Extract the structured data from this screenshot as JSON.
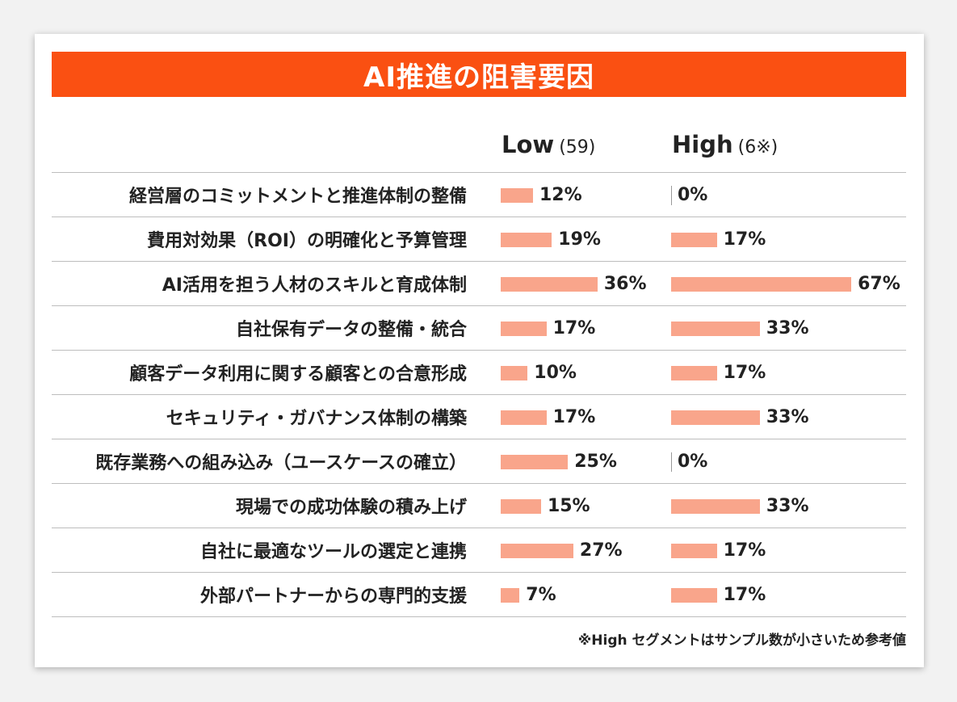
{
  "chart_data": {
    "type": "bar",
    "orientation": "horizontal",
    "title": "AI推進の阻害要因",
    "categories": [
      "経営層のコミットメントと推進体制の整備",
      "費用対効果（ROI）の明確化と予算管理",
      "AI活用を担う人材のスキルと育成体制",
      "自社保有データの整備・統合",
      "顧客データ利用に関する顧客との合意形成",
      "セキュリティ・ガバナンス体制の構築",
      "既存業務への組み込み（ユースケースの確立）",
      "現場での成功体験の積み上げ",
      "自社に最適なツールの選定と連携",
      "外部パートナーからの専門的支援"
    ],
    "series": [
      {
        "name": "Low",
        "n_label": "(59)",
        "values": [
          12,
          19,
          36,
          17,
          10,
          17,
          25,
          15,
          27,
          7
        ]
      },
      {
        "name": "High",
        "n_label": "(6※)",
        "values": [
          0,
          17,
          67,
          33,
          17,
          33,
          0,
          33,
          17,
          17
        ]
      }
    ],
    "value_suffix": "%",
    "bar_color": "#f9a58b",
    "title_color": "#fa5012",
    "footnote": "※High セグメントはサンプル数が小さいため参考値"
  }
}
